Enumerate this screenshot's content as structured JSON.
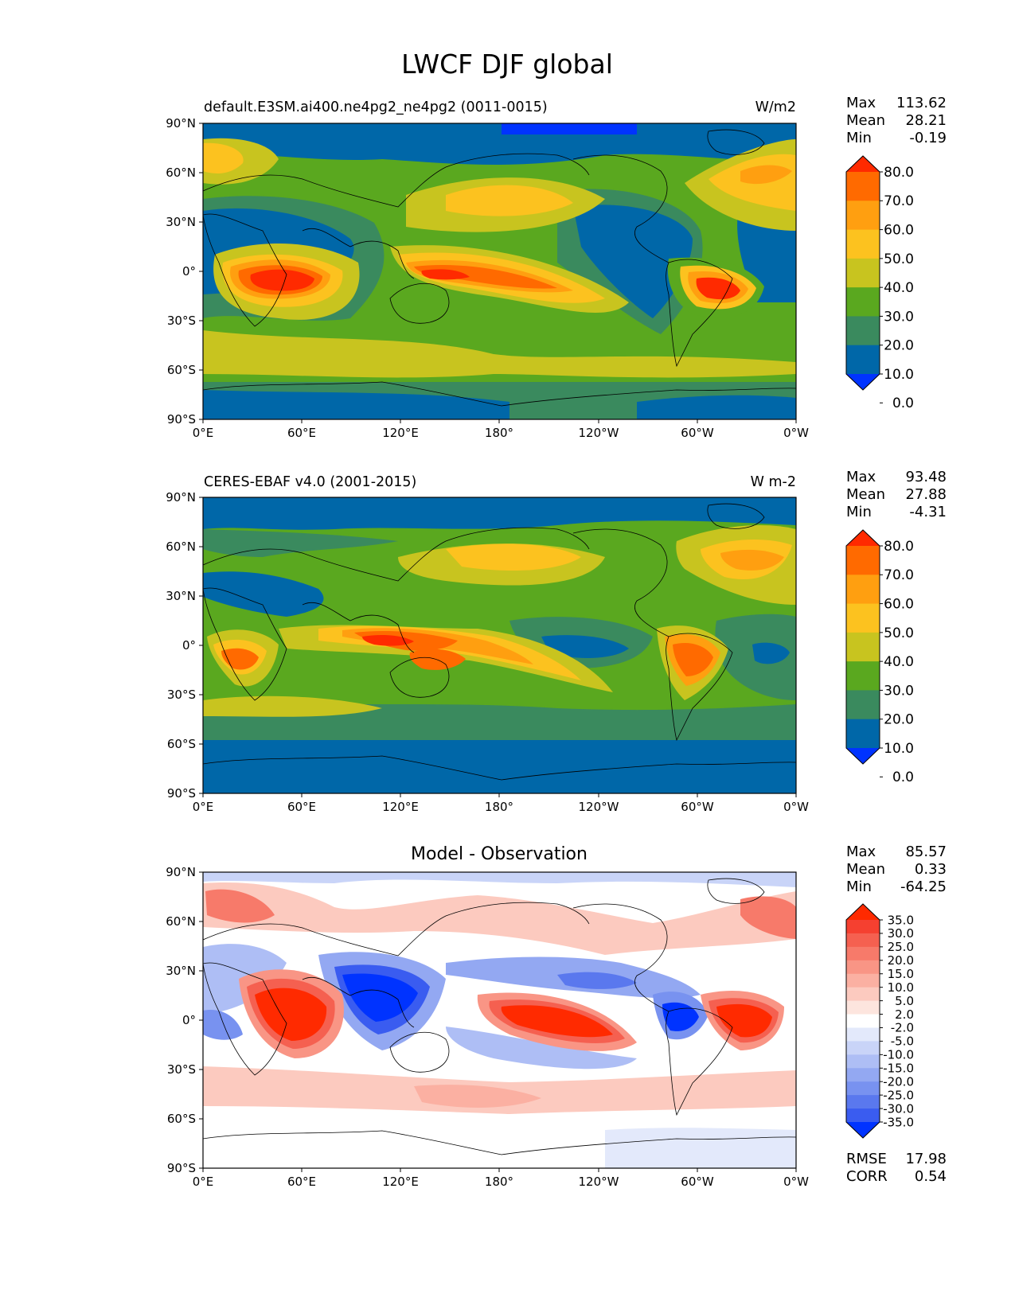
{
  "title": "LWCF DJF global",
  "panels": [
    {
      "id": "model",
      "left_title": "default.E3SM.ai400.ne4pg2_ne4pg2 (0011-0015)",
      "center_title": "",
      "units": "W/m2",
      "stats": [
        {
          "label": "Max",
          "value": "113.62"
        },
        {
          "label": "Mean",
          "value": "28.21"
        },
        {
          "label": "Min",
          "value": "-0.19"
        }
      ],
      "colorbar": {
        "levels": [
          "80.0",
          "70.0",
          "60.0",
          "50.0",
          "40.0",
          "30.0",
          "20.0",
          "10.0",
          "0.0"
        ],
        "colors": [
          "#ff2a00",
          "#ff6a00",
          "#ff9f10",
          "#fcc21f",
          "#c8c41f",
          "#5aa81f",
          "#3a8a5e",
          "#0067a8",
          "#0033ff"
        ]
      },
      "extra_stats": []
    },
    {
      "id": "obs",
      "left_title": "CERES-EBAF v4.0 (2001-2015)",
      "center_title": "",
      "units": "W m-2",
      "stats": [
        {
          "label": "Max",
          "value": "93.48"
        },
        {
          "label": "Mean",
          "value": "27.88"
        },
        {
          "label": "Min",
          "value": "-4.31"
        }
      ],
      "colorbar": {
        "levels": [
          "80.0",
          "70.0",
          "60.0",
          "50.0",
          "40.0",
          "30.0",
          "20.0",
          "10.0",
          "0.0"
        ],
        "colors": [
          "#ff2a00",
          "#ff6a00",
          "#ff9f10",
          "#fcc21f",
          "#c8c41f",
          "#5aa81f",
          "#3a8a5e",
          "#0067a8",
          "#0033ff"
        ]
      },
      "extra_stats": []
    },
    {
      "id": "diff",
      "left_title": "",
      "center_title": "Model - Observation",
      "units": "",
      "stats": [
        {
          "label": "Max",
          "value": "85.57"
        },
        {
          "label": "Mean",
          "value": "0.33"
        },
        {
          "label": "Min",
          "value": "-64.25"
        }
      ],
      "colorbar": {
        "levels": [
          "35.0",
          "30.0",
          "25.0",
          "20.0",
          "15.0",
          "10.0",
          "5.0",
          "2.0",
          "-2.0",
          "-5.0",
          "-10.0",
          "-15.0",
          "-20.0",
          "-25.0",
          "-30.0",
          "-35.0"
        ],
        "colors": [
          "#ff2a00",
          "#f54030",
          "#f56050",
          "#f77a6a",
          "#f99585",
          "#fbb0a2",
          "#fccabf",
          "#fde5de",
          "#ffffff",
          "#e3e9fb",
          "#c9d4f8",
          "#aebef5",
          "#93a8f2",
          "#7892f0",
          "#5a78ee",
          "#3a5cf0",
          "#0033ff"
        ]
      },
      "extra_stats": [
        {
          "label": "RMSE",
          "value": "17.98"
        },
        {
          "label": "CORR",
          "value": "0.54"
        }
      ]
    }
  ],
  "axes": {
    "lat_ticks": [
      "90°N",
      "60°N",
      "30°N",
      "0°",
      "30°S",
      "60°S",
      "90°S"
    ],
    "lon_ticks": [
      "0°E",
      "60°E",
      "120°E",
      "180°",
      "120°W",
      "60°W",
      "0°W"
    ]
  },
  "chart_data": [
    {
      "type": "heatmap",
      "title": "default.E3SM.ai400.ne4pg2_ne4pg2 (0011-0015)",
      "units": "W/m2",
      "stats": {
        "max": 113.62,
        "mean": 28.21,
        "min": -0.19
      },
      "contour_levels": [
        0,
        10,
        20,
        30,
        40,
        50,
        60,
        70,
        80
      ],
      "xlim": [
        0,
        360
      ],
      "ylim": [
        -90,
        90
      ],
      "features": [
        {
          "lon": 55,
          "lat": -10,
          "value": 85
        },
        {
          "lon": 145,
          "lat": -5,
          "value": 75
        },
        {
          "lon": 170,
          "lat": -8,
          "value": 70
        },
        {
          "lon": 310,
          "lat": -10,
          "value": 85
        },
        {
          "lon": 335,
          "lat": 55,
          "value": 60
        },
        {
          "lon": 150,
          "lat": 40,
          "value": 50
        },
        {
          "lon": 15,
          "lat": 60,
          "value": 50
        },
        {
          "lon": 100,
          "lat": 30,
          "value": 5
        },
        {
          "lon": 245,
          "lat": 10,
          "value": 5
        },
        {
          "lon": 340,
          "lat": 25,
          "value": 5
        },
        {
          "lon": 180,
          "lat": -60,
          "value": 30
        },
        {
          "lon": 180,
          "lat": -85,
          "value": 15
        }
      ]
    },
    {
      "type": "heatmap",
      "title": "CERES-EBAF v4.0 (2001-2015)",
      "units": "W m-2",
      "stats": {
        "max": 93.48,
        "mean": 27.88,
        "min": -4.31
      },
      "contour_levels": [
        0,
        10,
        20,
        30,
        40,
        50,
        60,
        70,
        80
      ],
      "xlim": [
        0,
        360
      ],
      "ylim": [
        -90,
        90
      ],
      "features": [
        {
          "lon": 25,
          "lat": -10,
          "value": 70
        },
        {
          "lon": 115,
          "lat": 0,
          "value": 85
        },
        {
          "lon": 140,
          "lat": -5,
          "value": 75
        },
        {
          "lon": 305,
          "lat": -10,
          "value": 70
        },
        {
          "lon": 170,
          "lat": 40,
          "value": 40
        },
        {
          "lon": 325,
          "lat": 45,
          "value": 50
        },
        {
          "lon": 100,
          "lat": 30,
          "value": 5
        },
        {
          "lon": 240,
          "lat": 0,
          "value": 5
        },
        {
          "lon": 345,
          "lat": -15,
          "value": 5
        },
        {
          "lon": 180,
          "lat": -50,
          "value": 30
        },
        {
          "lon": 180,
          "lat": -85,
          "value": 10
        }
      ]
    },
    {
      "type": "heatmap",
      "title": "Model - Observation",
      "units": "",
      "stats": {
        "max": 85.57,
        "mean": 0.33,
        "min": -64.25,
        "rmse": 17.98,
        "corr": 0.54
      },
      "contour_levels": [
        -35,
        -30,
        -25,
        -20,
        -15,
        -10,
        -5,
        -2,
        2,
        5,
        10,
        15,
        20,
        25,
        30,
        35
      ],
      "xlim": [
        0,
        360
      ],
      "ylim": [
        -90,
        90
      ],
      "features": [
        {
          "lon": 55,
          "lat": -10,
          "value": 45
        },
        {
          "lon": 200,
          "lat": -10,
          "value": 40
        },
        {
          "lon": 330,
          "lat": -10,
          "value": 45
        },
        {
          "lon": 100,
          "lat": 0,
          "value": -45
        },
        {
          "lon": 10,
          "lat": 0,
          "value": -25
        },
        {
          "lon": 290,
          "lat": -5,
          "value": -30
        },
        {
          "lon": 230,
          "lat": 10,
          "value": -25
        },
        {
          "lon": 220,
          "lat": -30,
          "value": -15
        },
        {
          "lon": 20,
          "lat": 60,
          "value": 20
        },
        {
          "lon": 345,
          "lat": 55,
          "value": 20
        },
        {
          "lon": 150,
          "lat": 45,
          "value": 10
        },
        {
          "lon": 180,
          "lat": -55,
          "value": 8
        }
      ]
    }
  ]
}
